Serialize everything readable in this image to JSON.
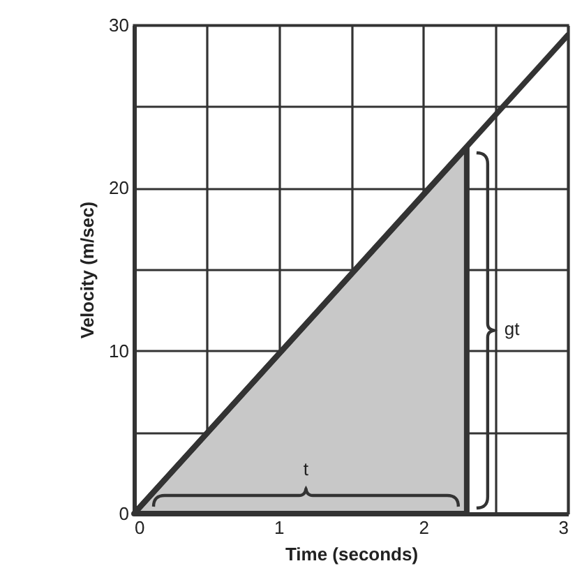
{
  "chart_data": {
    "type": "line",
    "xlabel": "Time (seconds)",
    "ylabel": "Velocity (m/sec)",
    "xlim": [
      0,
      3
    ],
    "ylim": [
      0,
      30
    ],
    "xticks": [
      0,
      {
        "value": 0.5,
        "label": null
      },
      1,
      {
        "value": 1.5,
        "label": null
      },
      2,
      {
        "value": 2.5,
        "label": null
      },
      3
    ],
    "yticks": [
      0,
      {
        "value": 5,
        "label": null
      },
      10,
      {
        "value": 15,
        "label": null
      },
      20,
      {
        "value": 25,
        "label": null
      },
      30
    ],
    "grid": true,
    "series": [
      {
        "type": "area",
        "color": "#c8c8c8",
        "x": [
          0,
          2.3,
          2.3
        ],
        "values": [
          0,
          22.5,
          0
        ]
      },
      {
        "color": "#333333",
        "x": [
          0,
          3
        ],
        "values": [
          0,
          29.4
        ]
      }
    ],
    "annotations": [
      "t",
      "gt"
    ]
  }
}
